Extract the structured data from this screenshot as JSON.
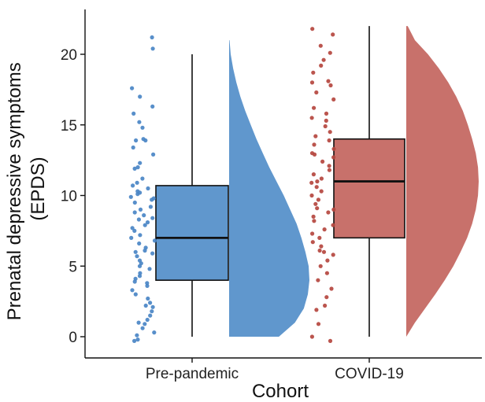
{
  "chart_data": {
    "type": "raincloud",
    "xlabel": "Cohort",
    "ylabel_lines": [
      "Prenatal depressive symptoms",
      "(EPDS)"
    ],
    "ylim": [
      -1,
      22
    ],
    "yticks": [
      0,
      5,
      10,
      15,
      20
    ],
    "grid": false,
    "legend": "none",
    "categories": [
      "Pre-pandemic",
      "COVID-19"
    ],
    "series": [
      {
        "category": "Pre-pandemic",
        "color": "#4a86c5",
        "fill": "#6097cd",
        "box": {
          "min": 0,
          "q1": 4,
          "median": 7,
          "q3": 10.7,
          "max": 20
        },
        "density": {
          "y": [
            0,
            1,
            2,
            3,
            4,
            5,
            6,
            7,
            8,
            9,
            10,
            11,
            12,
            13,
            14,
            15,
            16,
            17,
            18,
            19,
            20,
            21
          ],
          "d": [
            0.62,
            0.82,
            0.93,
            0.98,
            1.0,
            0.99,
            0.95,
            0.9,
            0.84,
            0.76,
            0.68,
            0.59,
            0.5,
            0.42,
            0.34,
            0.27,
            0.2,
            0.14,
            0.09,
            0.05,
            0.02,
            0.005
          ]
        },
        "points": [
          21.2,
          20.4,
          17.6,
          17.0,
          16.3,
          15.8,
          15.2,
          14.8,
          13.9,
          13.9,
          13.4,
          12.9,
          12.3,
          11.9,
          11.2,
          10.9,
          10.7,
          10.5,
          10.3,
          10.1,
          9.9,
          9.7,
          9.5,
          9.2,
          9.0,
          8.8,
          8.6,
          8.3,
          8.1,
          7.9,
          7.7,
          7.5,
          7.2,
          7.0,
          6.8,
          6.6,
          6.3,
          6.1,
          5.9,
          5.7,
          5.4,
          5.2,
          5.0,
          4.8,
          4.5,
          4.3,
          4.1,
          3.9,
          3.6,
          3.3,
          3.0,
          2.7,
          2.4,
          2.1,
          1.8,
          1.5,
          1.2,
          0.9,
          0.6,
          0.3,
          0.1,
          -0.2,
          -0.3,
          1.0,
          2.2,
          3.8,
          6.0,
          8.4,
          9.8,
          12.0,
          14.0,
          10.2
        ]
      },
      {
        "category": "COVID-19",
        "color": "#b5463f",
        "fill": "#c8716b",
        "box": {
          "min": 0,
          "q1": 7,
          "median": 11,
          "q3": 14,
          "max": 22
        },
        "density": {
          "y": [
            0,
            1,
            2,
            3,
            4,
            5,
            6,
            7,
            8,
            9,
            10,
            11,
            12,
            13,
            14,
            15,
            16,
            17,
            18,
            19,
            20,
            21,
            22
          ],
          "d": [
            0.0,
            0.12,
            0.26,
            0.4,
            0.53,
            0.65,
            0.75,
            0.84,
            0.91,
            0.96,
            0.99,
            1.0,
            0.99,
            0.96,
            0.91,
            0.85,
            0.78,
            0.69,
            0.58,
            0.45,
            0.3,
            0.12,
            0.02
          ]
        },
        "points": [
          21.8,
          21.4,
          20.6,
          20.1,
          19.6,
          19.2,
          18.7,
          18.1,
          17.8,
          17.3,
          16.8,
          16.2,
          15.8,
          15.3,
          14.9,
          14.5,
          14.2,
          13.9,
          13.6,
          13.3,
          13.0,
          12.7,
          12.4,
          12.1,
          11.8,
          11.5,
          11.2,
          10.9,
          10.6,
          10.3,
          10.0,
          9.7,
          9.4,
          9.1,
          8.8,
          8.5,
          8.2,
          7.9,
          7.6,
          7.3,
          7.0,
          6.7,
          6.4,
          6.1,
          5.8,
          5.4,
          5.0,
          4.5,
          4.0,
          3.4,
          2.8,
          2.2,
          1.9,
          0.9,
          0.0,
          -0.3,
          18.0,
          15.5,
          12.9,
          11.0,
          9.0,
          6.0
        ]
      }
    ]
  }
}
